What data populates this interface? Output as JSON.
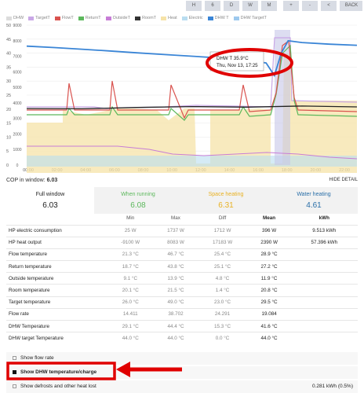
{
  "nav": [
    "H",
    "6",
    "D",
    "W",
    "M",
    "+",
    "-",
    "<",
    ">",
    "BACK"
  ],
  "legend": [
    {
      "name": "DHW",
      "color": "#dcdcdc"
    },
    {
      "name": "TargetT",
      "color": "#c9a7e6"
    },
    {
      "name": "FlowT",
      "color": "#d9534f"
    },
    {
      "name": "ReturnT",
      "color": "#5cb85c"
    },
    {
      "name": "OutsideT",
      "color": "#c77dd6"
    },
    {
      "name": "RoomT",
      "color": "#333333"
    },
    {
      "name": "Heat",
      "color": "#f6e3a8"
    },
    {
      "name": "Electric",
      "color": "#b9ddf0"
    },
    {
      "name": "DHW T",
      "color": "#3a85d6"
    },
    {
      "name": "DHW TargetT",
      "color": "#9ec9ee"
    }
  ],
  "chart_data": {
    "type": "line",
    "x_ticks": [
      "00:00",
      "02:00",
      "04:00",
      "06:00",
      "08:00",
      "10:00",
      "12:00",
      "14:00",
      "16:00",
      "18:00",
      "20:00",
      "22:00"
    ],
    "y_left_ticks": [
      "0",
      "5",
      "10",
      "15",
      "20",
      "25",
      "30",
      "35",
      "40",
      "45",
      "50"
    ],
    "y_right_ticks": [
      "0",
      "1000",
      "2000",
      "3000",
      "4000",
      "5000",
      "6000",
      "7000",
      "8000",
      "9000"
    ],
    "tooltip": {
      "line1": "DHW T 35.9°C",
      "line2": "Thu, Nov 13, 17:25"
    },
    "series": [
      {
        "name": "DHW T",
        "color": "#3a85d6",
        "x": [
          0,
          2,
          4,
          6,
          8,
          10,
          12,
          14,
          16,
          17.4,
          18,
          18.5,
          19,
          20,
          22,
          24
        ],
        "y": [
          42.5,
          42.0,
          41.4,
          40.8,
          40.1,
          39.5,
          38.9,
          38.3,
          37.5,
          36.5,
          32.0,
          40.0,
          44.4,
          43.8,
          43.2,
          42.8
        ]
      },
      {
        "name": "RoomT",
        "color": "#222222",
        "x": [
          0,
          4,
          8,
          12,
          16,
          20,
          24
        ],
        "y": [
          20.2,
          20.1,
          20.6,
          20.9,
          20.7,
          21.1,
          20.8
        ]
      }
    ]
  },
  "cop": {
    "label": "COP in window:",
    "value": "6.03"
  },
  "hide_detail": "HIDE DETAIL",
  "summary": [
    {
      "label": "Full window",
      "value": "6.03",
      "color": "#222222"
    },
    {
      "label": "When running",
      "value": "6.08",
      "color": "#5cb85c"
    },
    {
      "label": "Space heating",
      "value": "6.31",
      "color": "#e8b123"
    },
    {
      "label": "Water heating",
      "value": "4.61",
      "color": "#2a6fa8"
    }
  ],
  "table": {
    "headers": [
      "",
      "Min",
      "Max",
      "Diff",
      "Mean",
      "kWh"
    ],
    "rows": [
      [
        "HP electric consumption",
        "25 W",
        "1737 W",
        "1712 W",
        "396 W",
        "9.513 kWh"
      ],
      [
        "HP heat output",
        "-9100 W",
        "8083 W",
        "17183 W",
        "2390 W",
        "57.396 kWh"
      ],
      [
        "Flow temperature",
        "21.3 °C",
        "46.7 °C",
        "25.4 °C",
        "28.9 °C",
        ""
      ],
      [
        "Return temperature",
        "18.7 °C",
        "43.8 °C",
        "25.1 °C",
        "27.2 °C",
        ""
      ],
      [
        "Outside temperature",
        "9.1 °C",
        "13.9 °C",
        "4.8 °C",
        "11.9 °C",
        ""
      ],
      [
        "Room temperature",
        "20.1 °C",
        "21.5 °C",
        "1.4 °C",
        "20.8 °C",
        ""
      ],
      [
        "Target temperature",
        "26.0 °C",
        "49.0 °C",
        "23.0 °C",
        "29.5 °C",
        ""
      ],
      [
        "Flow rate",
        "14.411",
        "38.702",
        "24.291",
        "19.084",
        ""
      ],
      [
        "DHW Temperature",
        "29.1 °C",
        "44.4 °C",
        "15.3 °C",
        "41.6 °C",
        ""
      ],
      [
        "DHW target Temperature",
        "44.0 °C",
        "44.0 °C",
        "0.0 °C",
        "44.0 °C",
        ""
      ]
    ]
  },
  "options": [
    {
      "label": "Show flow rate",
      "checked": false,
      "right": ""
    },
    {
      "label": "Show DHW temperature/charge",
      "checked": true,
      "right": ""
    },
    {
      "label": "Show defrosts and other heat lost",
      "checked": false,
      "right": "0.281 kWh (0.5%)"
    }
  ]
}
